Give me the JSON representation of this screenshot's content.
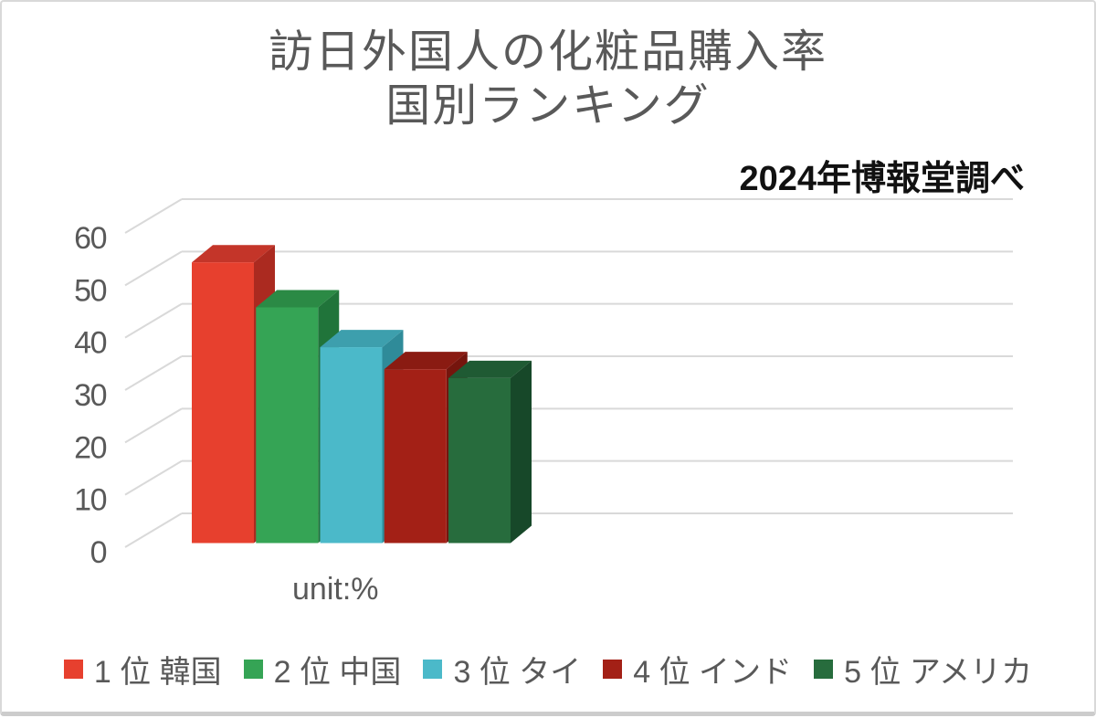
{
  "chart_data": {
    "type": "bar",
    "style": "3d-column",
    "title_lines": [
      "訪日外国人の化粧品購入率",
      "国別ランキング"
    ],
    "subtitle": "2024年博報堂調べ",
    "unit_label": "unit:%",
    "ylim": [
      0,
      60
    ],
    "yticks": [
      0,
      10,
      20,
      30,
      40,
      50,
      60
    ],
    "grid": true,
    "legend_position": "bottom",
    "categories": [
      "韓国",
      "中国",
      "タイ",
      "インド",
      "アメリカ"
    ],
    "values": [
      53.6,
      45,
      37.4,
      33.2,
      31.5
    ],
    "bars": [
      {
        "id": "korea",
        "legend_label": "1 位 韓国",
        "value": 53.6,
        "front": "#E7402E",
        "top": "#C43529",
        "side": "#AB2A20"
      },
      {
        "id": "china",
        "legend_label": "2 位 中国",
        "value": 45,
        "front": "#35A455",
        "top": "#2B8A45",
        "side": "#20743A"
      },
      {
        "id": "thailand",
        "legend_label": "3 位 タイ",
        "value": 37.4,
        "front": "#4BB9C9",
        "top": "#3D9FAD",
        "side": "#2F8B99"
      },
      {
        "id": "india",
        "legend_label": "4 位 インド",
        "value": 33.2,
        "front": "#A32016",
        "top": "#8A1B12",
        "side": "#75150D"
      },
      {
        "id": "america",
        "legend_label": "5 位 アメリカ",
        "value": 31.5,
        "front": "#276C3D",
        "top": "#1F5A33",
        "side": "#174829"
      }
    ],
    "grid_color": "#d9d9d9",
    "tick_color": "#595959"
  }
}
